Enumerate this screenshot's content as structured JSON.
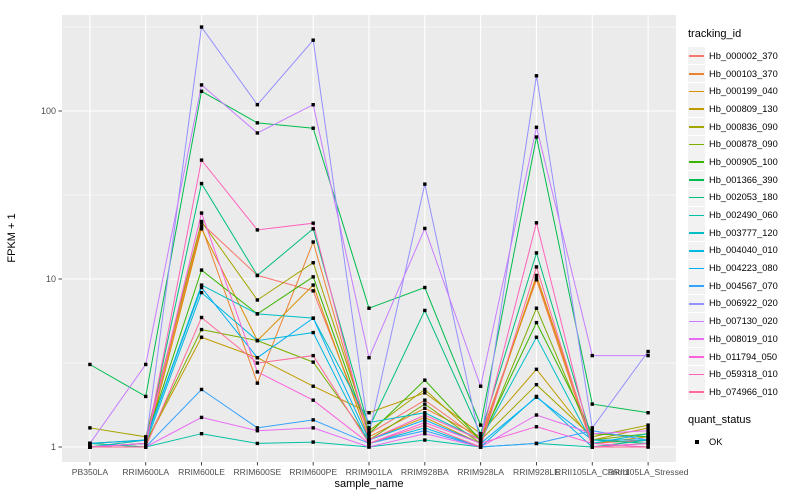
{
  "chart_data": {
    "type": "line",
    "title": "",
    "xlabel": "sample_name",
    "ylabel": "FPKM + 1",
    "y_scale": "log10",
    "ylim": [
      0.82,
      370
    ],
    "grid": "major-white-on-grey, minor half-decade",
    "panel_bg": "#EBEBEB",
    "grid_color": "#FFFFFF",
    "tick_color": "#333333",
    "tick_label_color": "#4D4D4D",
    "point_marker": "black-square",
    "legend_position": "right",
    "legend_title": "tracking_id",
    "quant_legend": {
      "title": "quant_status",
      "items": [
        "OK"
      ]
    },
    "x_categories": [
      "PB350LA",
      "RRIM600LA",
      "RRIM600LE",
      "RRIM600SE",
      "RRIM600PE",
      "RRIM901LA",
      "RRIM928BA",
      "RRIM928LA",
      "RRIM928LE",
      "RRII105LA_Control",
      "RRII105LA_Stressed"
    ],
    "y_ticks": [
      1,
      10,
      100
    ],
    "y_minor_ticks": [
      3.162,
      31.62,
      316.2
    ],
    "series": [
      {
        "name": "Hb_000002_370",
        "color": "#F8766D",
        "values": [
          1.0,
          1.05,
          21.5,
          10.5,
          8.5,
          1.2,
          1.9,
          1.1,
          10.2,
          1.05,
          1.1
        ]
      },
      {
        "name": "Hb_000103_370",
        "color": "#EA8331",
        "values": [
          1.0,
          1.1,
          20.5,
          2.4,
          16.6,
          1.15,
          1.7,
          1.15,
          9.9,
          1.0,
          1.1
        ]
      },
      {
        "name": "Hb_000199_040",
        "color": "#D89000",
        "values": [
          1.05,
          1.0,
          19.9,
          4.3,
          9.2,
          1.1,
          1.5,
          1.05,
          10.5,
          1.05,
          1.15
        ]
      },
      {
        "name": "Hb_000809_130",
        "color": "#C09B00",
        "values": [
          1.0,
          1.05,
          4.5,
          3.4,
          2.3,
          1.6,
          2.1,
          1.2,
          2.9,
          1.1,
          1.3
        ]
      },
      {
        "name": "Hb_000836_090",
        "color": "#A3A500",
        "values": [
          1.3,
          1.15,
          22.0,
          7.5,
          12.5,
          1.25,
          2.2,
          1.1,
          2.35,
          1.15,
          1.35
        ]
      },
      {
        "name": "Hb_000878_090",
        "color": "#7CAE00",
        "values": [
          1.0,
          1.05,
          5.0,
          4.3,
          3.2,
          1.1,
          1.8,
          1.05,
          6.7,
          1.1,
          1.2
        ]
      },
      {
        "name": "Hb_000905_100",
        "color": "#39B600",
        "values": [
          1.05,
          1.1,
          11.3,
          6.2,
          10.3,
          1.2,
          2.5,
          1.1,
          5.5,
          1.2,
          1.15
        ]
      },
      {
        "name": "Hb_001366_390",
        "color": "#00BB4E",
        "values": [
          3.1,
          2.0,
          131,
          85,
          79,
          6.7,
          8.9,
          1.35,
          70,
          1.8,
          1.6
        ]
      },
      {
        "name": "Hb_002053_180",
        "color": "#00BF7D",
        "values": [
          1.0,
          1.05,
          37,
          10.5,
          19.9,
          1.3,
          6.5,
          1.2,
          14.3,
          1.1,
          1.05
        ]
      },
      {
        "name": "Hb_002490_060",
        "color": "#00C1A3",
        "values": [
          1.05,
          1.0,
          1.2,
          1.05,
          1.07,
          1.0,
          1.1,
          1.0,
          1.05,
          1.0,
          1.1
        ]
      },
      {
        "name": "Hb_003777_120",
        "color": "#00BFC4",
        "values": [
          1.0,
          1.1,
          9.2,
          6.2,
          5.85,
          1.4,
          1.6,
          1.1,
          4.5,
          1.05,
          1.2
        ]
      },
      {
        "name": "Hb_004040_010",
        "color": "#00BAE0",
        "values": [
          1.0,
          1.05,
          8.3,
          4.3,
          4.8,
          1.05,
          1.3,
          1.0,
          2.0,
          1.0,
          1.05
        ]
      },
      {
        "name": "Hb_004223_080",
        "color": "#00B0F6",
        "values": [
          1.05,
          1.1,
          8.9,
          3.4,
          5.85,
          1.1,
          1.45,
          1.05,
          1.98,
          1.1,
          1.1
        ]
      },
      {
        "name": "Hb_004567_070",
        "color": "#35A2FF",
        "values": [
          1.0,
          1.0,
          2.2,
          1.3,
          1.45,
          1.05,
          1.25,
          1.0,
          1.05,
          1.25,
          1.1
        ]
      },
      {
        "name": "Hb_006922_020",
        "color": "#9590FF",
        "values": [
          1.0,
          1.05,
          316,
          109,
          264,
          1.2,
          36.7,
          1.05,
          162,
          1.3,
          3.7
        ]
      },
      {
        "name": "Hb_007130_020",
        "color": "#C77CFF",
        "values": [
          1.05,
          3.1,
          143,
          74,
          109,
          3.4,
          20,
          2.3,
          80,
          3.5,
          3.5
        ]
      },
      {
        "name": "Hb_008019_010",
        "color": "#E76BF3",
        "values": [
          1.0,
          1.0,
          1.5,
          1.25,
          1.3,
          1.0,
          1.2,
          1.0,
          1.55,
          1.2,
          1.25
        ]
      },
      {
        "name": "Hb_011794_050",
        "color": "#FA62DB",
        "values": [
          1.0,
          1.05,
          24.7,
          2.8,
          1.9,
          1.05,
          1.4,
          1.05,
          1.32,
          1.05,
          1.0
        ]
      },
      {
        "name": "Hb_059318_010",
        "color": "#FF62BC",
        "values": [
          1.0,
          1.0,
          51,
          19.6,
          21.5,
          1.1,
          1.55,
          1.1,
          21.6,
          1.0,
          1.05
        ]
      },
      {
        "name": "Hb_074966_010",
        "color": "#FF6A98",
        "values": [
          1.0,
          1.0,
          5.9,
          3.16,
          3.5,
          1.05,
          1.35,
          1.0,
          11.8,
          1.0,
          1.0
        ]
      }
    ]
  }
}
